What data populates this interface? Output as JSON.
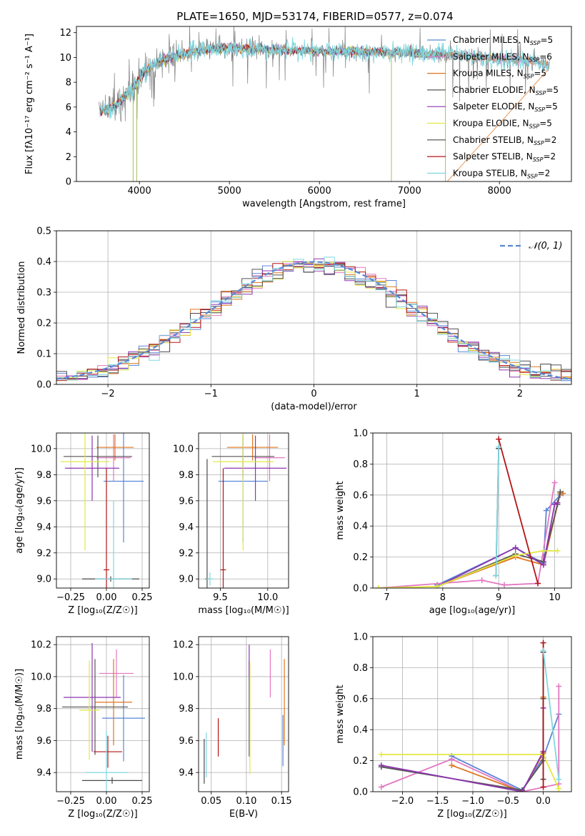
{
  "figure_title": "PLATE=1650, MJD=53174, FIBERID=0577, z=0.074",
  "series_colors": {
    "Chabrier MILES": "#5a87d8",
    "Salpeter MILES": "#e377c2",
    "Kroupa MILES": "#e0761f",
    "Chabrier ELODIE": "#555555",
    "Salpeter ELODIE": "#8f35b0",
    "Kroupa ELODIE": "#e3e840",
    "Chabrier STELIB": "#4a4a4a",
    "Salpeter STELIB": "#b51414",
    "Kroupa STELIB": "#7fd7e0",
    "spectrum_data": "#808080",
    "normal_curve": "#5a87d8",
    "grid": "#b0b0b0"
  },
  "chart_data": [
    {
      "id": "spectrum",
      "type": "line",
      "title": "PLATE=1650, MJD=53174, FIBERID=0577, z=0.074",
      "xlabel": "wavelength [Angstrom, rest frame]",
      "ylabel": "Flux [fλ10⁻¹⁷ erg cm⁻² s⁻¹ A⁻¹]",
      "xlim": [
        3300,
        8800
      ],
      "ylim": [
        0,
        12.5
      ],
      "xticks": [
        4000,
        5000,
        6000,
        7000,
        8000
      ],
      "yticks": [
        0,
        2,
        4,
        6,
        8,
        10,
        12
      ],
      "grid": false,
      "legend_position": "right",
      "legend": [
        {
          "label": "Chabrier MILES, N",
          "sub": "SSP",
          "suffix": "=5"
        },
        {
          "label": "Salpeter MILES, N",
          "sub": "SSP",
          "suffix": "=6"
        },
        {
          "label": "Kroupa MILES, N",
          "sub": "SSP",
          "suffix": "=5"
        },
        {
          "label": "Chabrier ELODIE, N",
          "sub": "SSP",
          "suffix": "=5"
        },
        {
          "label": "Salpeter ELODIE, N",
          "sub": "SSP",
          "suffix": "=5"
        },
        {
          "label": "Kroupa ELODIE, N",
          "sub": "SSP",
          "suffix": "=5"
        },
        {
          "label": "Chabrier STELIB, N",
          "sub": "SSP",
          "suffix": "=2"
        },
        {
          "label": "Salpeter STELIB, N",
          "sub": "SSP",
          "suffix": "=2"
        },
        {
          "label": "Kroupa STELIB, N",
          "sub": "SSP",
          "suffix": "=2"
        }
      ],
      "continuum": {
        "wavelength": [
          3550,
          3700,
          3800,
          3900,
          4000,
          4100,
          4200,
          4300,
          4400,
          4500,
          4700,
          5000,
          5300,
          5600,
          6000,
          6400,
          6800,
          7000,
          7300,
          7400,
          7500,
          8000,
          8400,
          8550
        ],
        "flux": [
          5.6,
          6.0,
          6.6,
          7.3,
          8.3,
          9.1,
          9.6,
          9.9,
          10.1,
          10.3,
          10.6,
          10.8,
          10.7,
          10.6,
          10.5,
          10.5,
          10.4,
          10.4,
          10.2,
          10.3,
          10.2,
          9.9,
          9.7,
          9.3
        ]
      },
      "features": [
        {
          "wavelength": 3930,
          "depth_to": 0
        },
        {
          "wavelength": 3970,
          "depth_to": 0
        },
        {
          "wavelength": 6800,
          "depth_to": 0
        },
        {
          "wavelength": 7400,
          "depth_to": 0
        }
      ]
    },
    {
      "id": "residuals",
      "type": "histogram",
      "xlabel": "(data-model)/error",
      "ylabel": "Normed distribution",
      "xlim": [
        -2.5,
        2.5
      ],
      "ylim": [
        0,
        0.5
      ],
      "xticks": [
        -2,
        -1,
        0,
        1,
        2
      ],
      "yticks": [
        0.0,
        0.1,
        0.2,
        0.3,
        0.4,
        0.5
      ],
      "grid": true,
      "legend_position": "top-right",
      "legend": [
        {
          "label": "𝒩(0, 1)",
          "style": "dashed"
        }
      ],
      "bin_edges_start": -2.5,
      "bin_width": 0.1
    },
    {
      "id": "age_vs_Z",
      "type": "errorbar",
      "xlabel": "Z [log₁₀(Z/Z☉)]",
      "ylabel": "age  [log₁₀(age/yr)]",
      "xlim": [
        -0.35,
        0.3
      ],
      "ylim": [
        8.93,
        10.12
      ],
      "xticks": [
        -0.25,
        0.0,
        0.25
      ],
      "yticks": [
        9.0,
        9.2,
        9.4,
        9.6,
        9.8,
        10.0
      ],
      "grid": true,
      "points": [
        {
          "series": "Chabrier MILES",
          "x": 0.12,
          "xerr": 0.14,
          "y": 9.75,
          "yerr": 0.47
        },
        {
          "series": "Salpeter MILES",
          "x": 0.05,
          "xerr": 0.12,
          "y": 9.93,
          "yerr": 0.18
        },
        {
          "series": "Kroupa MILES",
          "x": 0.06,
          "xerr": 0.13,
          "y": 10.01,
          "yerr": 0.1
        },
        {
          "series": "Chabrier ELODIE",
          "x": -0.06,
          "xerr": 0.24,
          "y": 9.94,
          "yerr": 0.16
        },
        {
          "series": "Salpeter ELODIE",
          "x": -0.1,
          "xerr": 0.19,
          "y": 9.85,
          "yerr": 0.25
        },
        {
          "series": "Kroupa ELODIE",
          "x": -0.15,
          "xerr": 0.17,
          "y": 9.9,
          "yerr": 0.68
        },
        {
          "series": "Chabrier STELIB",
          "x": 0.03,
          "xerr": 0.2,
          "y": 9.0,
          "yerr": 0.02
        },
        {
          "series": "Salpeter STELIB",
          "x": 0.0,
          "xerr": 0.02,
          "y": 9.07,
          "yerr": 0.78
        },
        {
          "series": "Kroupa STELIB",
          "x": 0.05,
          "xerr": 0.13,
          "y": 9.0,
          "yerr": 0.6
        }
      ]
    },
    {
      "id": "age_vs_mass",
      "type": "errorbar",
      "xlabel": "mass [log₁₀(M/M☉)]",
      "ylabel": "",
      "xlim": [
        9.27,
        10.22
      ],
      "ylim": [
        8.93,
        10.12
      ],
      "xticks": [
        9.5,
        10.0
      ],
      "yticks": [
        9.0,
        9.2,
        9.4,
        9.6,
        9.8,
        10.0
      ],
      "grid": true,
      "points": [
        {
          "series": "Chabrier MILES",
          "x": 9.74,
          "xerr": 0.26,
          "y": 9.75,
          "yerr": 0.47
        },
        {
          "series": "Salpeter MILES",
          "x": 10.02,
          "xerr": 0.16,
          "y": 9.93,
          "yerr": 0.18
        },
        {
          "series": "Kroupa MILES",
          "x": 9.84,
          "xerr": 0.27,
          "y": 10.01,
          "yerr": 0.1
        },
        {
          "series": "Chabrier ELODIE",
          "x": 9.74,
          "xerr": 0.33,
          "y": 9.94,
          "yerr": 0.16
        },
        {
          "series": "Salpeter ELODIE",
          "x": 9.87,
          "xerr": 0.33,
          "y": 9.85,
          "yerr": 0.25
        },
        {
          "series": "Kroupa ELODIE",
          "x": 9.74,
          "xerr": 0.32,
          "y": 9.9,
          "yerr": 0.68
        },
        {
          "series": "Chabrier STELIB",
          "x": 9.36,
          "xerr": 0.02,
          "y": 9.0,
          "yerr": 0.92
        },
        {
          "series": "Salpeter STELIB",
          "x": 9.53,
          "xerr": 0.03,
          "y": 9.07,
          "yerr": 0.78
        },
        {
          "series": "Kroupa STELIB",
          "x": 9.39,
          "xerr": 0.04,
          "y": 9.0,
          "yerr": 0.05
        }
      ]
    },
    {
      "id": "weights_vs_age",
      "type": "line",
      "xlabel": "age  [log₁₀(age/yr)]",
      "ylabel": "mass weight",
      "xlim": [
        6.75,
        10.3
      ],
      "ylim": [
        0,
        1.0
      ],
      "xticks": [
        7,
        8,
        9,
        10
      ],
      "yticks": [
        0.0,
        0.2,
        0.4,
        0.6,
        0.8,
        1.0
      ],
      "grid": true,
      "series": [
        {
          "name": "Chabrier MILES",
          "x": [
            7.9,
            9.3,
            9.8,
            9.85,
            10.1
          ],
          "y": [
            0.02,
            0.26,
            0.16,
            0.5,
            0.6
          ]
        },
        {
          "name": "Salpeter MILES",
          "x": [
            6.85,
            8.7,
            9.1,
            9.7,
            10.0
          ],
          "y": [
            0.0,
            0.05,
            0.02,
            0.03,
            0.68
          ]
        },
        {
          "name": "Kroupa MILES",
          "x": [
            7.9,
            9.3,
            9.8,
            10.1,
            10.15
          ],
          "y": [
            0.01,
            0.2,
            0.15,
            0.61,
            0.61
          ]
        },
        {
          "name": "Chabrier ELODIE",
          "x": [
            7.9,
            9.3,
            9.8,
            10.05,
            10.1
          ],
          "y": [
            0.01,
            0.22,
            0.17,
            0.54,
            0.62
          ]
        },
        {
          "name": "Salpeter ELODIE",
          "x": [
            7.9,
            9.3,
            9.8,
            10.0,
            10.05
          ],
          "y": [
            0.01,
            0.26,
            0.15,
            0.54,
            0.55
          ]
        },
        {
          "name": "Kroupa ELODIE",
          "x": [
            6.85,
            7.9,
            9.3,
            9.8,
            10.05
          ],
          "y": [
            0.0,
            0.01,
            0.21,
            0.24,
            0.24
          ]
        },
        {
          "name": "Chabrier STELIB",
          "x": [
            8.95,
            9.0
          ],
          "y": [
            0.08,
            0.9
          ]
        },
        {
          "name": "Salpeter STELIB",
          "x": [
            9.0,
            9.7
          ],
          "y": [
            0.96,
            0.03
          ]
        },
        {
          "name": "Kroupa STELIB",
          "x": [
            8.95,
            9.0
          ],
          "y": [
            0.08,
            0.91
          ]
        }
      ]
    },
    {
      "id": "mass_vs_Z",
      "type": "errorbar",
      "xlabel": "Z [log₁₀(Z/Z☉)]",
      "ylabel": "mass [log₁₀(M/M☉)]",
      "xlim": [
        -0.35,
        0.3
      ],
      "ylim": [
        9.28,
        10.25
      ],
      "xticks": [
        -0.25,
        0.0,
        0.25
      ],
      "yticks": [
        9.4,
        9.6,
        9.8,
        10.0,
        10.2
      ],
      "grid": true,
      "points": [
        {
          "series": "Chabrier MILES",
          "x": 0.12,
          "xerr": 0.15,
          "y": 9.74,
          "yerr": 0.27
        },
        {
          "series": "Salpeter MILES",
          "x": 0.07,
          "xerr": 0.12,
          "y": 10.02,
          "yerr": 0.15
        },
        {
          "series": "Kroupa MILES",
          "x": 0.05,
          "xerr": 0.13,
          "y": 9.84,
          "yerr": 0.27
        },
        {
          "series": "Chabrier ELODIE",
          "x": -0.08,
          "xerr": 0.23,
          "y": 9.81,
          "yerr": 0.3
        },
        {
          "series": "Salpeter ELODIE",
          "x": -0.1,
          "xerr": 0.2,
          "y": 9.87,
          "yerr": 0.34
        },
        {
          "series": "Kroupa ELODIE",
          "x": -0.12,
          "xerr": 0.07,
          "y": 9.79,
          "yerr": 0.31
        },
        {
          "series": "Chabrier STELIB",
          "x": 0.04,
          "xerr": 0.21,
          "y": 9.35,
          "yerr": 0.02
        },
        {
          "series": "Salpeter STELIB",
          "x": 0.01,
          "xerr": 0.1,
          "y": 9.53,
          "yerr": 0.1
        },
        {
          "series": "Kroupa STELIB",
          "x": 0.0,
          "xerr": 0.15,
          "y": 9.4,
          "yerr": 0.26
        }
      ]
    },
    {
      "id": "mass_vs_ebv",
      "type": "errorbar",
      "xlabel": "E(B-V)",
      "ylabel": "",
      "xlim": [
        0.032,
        0.16
      ],
      "ylim": [
        9.28,
        10.25
      ],
      "xticks": [
        0.05,
        0.1,
        0.15
      ],
      "yticks": [
        9.4,
        9.6,
        9.8,
        10.0,
        10.2
      ],
      "grid": true,
      "points": [
        {
          "series": "Chabrier MILES",
          "x": 0.152,
          "y": 9.6,
          "yerr": 0.16
        },
        {
          "series": "Salpeter MILES",
          "x": 0.134,
          "y": 10.02,
          "yerr": 0.15
        },
        {
          "series": "Kroupa MILES",
          "x": 0.154,
          "y": 9.84,
          "yerr": 0.27
        },
        {
          "series": "Chabrier ELODIE",
          "x": 0.104,
          "y": 9.8,
          "yerr": 0.3
        },
        {
          "series": "Salpeter ELODIE",
          "x": 0.104,
          "y": 10.1,
          "yerr": 0.1
        },
        {
          "series": "Kroupa ELODIE",
          "x": 0.105,
          "y": 9.74,
          "yerr": 0.35
        },
        {
          "series": "Chabrier STELIB",
          "x": 0.04,
          "y": 9.47,
          "yerr": 0.14
        },
        {
          "series": "Salpeter STELIB",
          "x": 0.06,
          "y": 9.62,
          "yerr": 0.12
        },
        {
          "series": "Kroupa STELIB",
          "x": 0.043,
          "y": 9.51,
          "yerr": 0.14
        }
      ]
    },
    {
      "id": "weights_vs_Z",
      "type": "line",
      "xlabel": "Z [log₁₀(Z/Z☉)]",
      "ylabel": "mass weight",
      "xlim": [
        -2.42,
        0.4
      ],
      "ylim": [
        0,
        1.0
      ],
      "xticks": [
        -2.0,
        -1.5,
        -1.0,
        -0.5,
        0.0
      ],
      "yticks": [
        0.0,
        0.2,
        0.4,
        0.6,
        0.8,
        1.0
      ],
      "grid": true,
      "series": [
        {
          "name": "Chabrier MILES",
          "x": [
            -1.3,
            -0.3,
            0.0,
            0.22
          ],
          "y": [
            0.23,
            0.01,
            0.22,
            0.5
          ]
        },
        {
          "name": "Salpeter MILES",
          "x": [
            -2.3,
            -1.3,
            -0.3,
            0.22,
            0.22
          ],
          "y": [
            0.03,
            0.21,
            0.0,
            0.05,
            0.68
          ]
        },
        {
          "name": "Kroupa MILES",
          "x": [
            -1.3,
            -0.3,
            0.0,
            0.0
          ],
          "y": [
            0.17,
            0.0,
            0.25,
            0.61
          ]
        },
        {
          "name": "Chabrier ELODIE",
          "x": [
            -2.3,
            -0.3,
            0.0,
            0.0
          ],
          "y": [
            0.16,
            0.01,
            0.2,
            0.6
          ]
        },
        {
          "name": "Salpeter ELODIE",
          "x": [
            -2.3,
            -0.3,
            0.0,
            0.0
          ],
          "y": [
            0.17,
            0.0,
            0.26,
            0.54
          ]
        },
        {
          "name": "Kroupa ELODIE",
          "x": [
            -2.3,
            0.0,
            0.22
          ],
          "y": [
            0.24,
            0.24,
            0.02
          ]
        },
        {
          "name": "Chabrier STELIB",
          "x": [
            0.0,
            0.0
          ],
          "y": [
            0.08,
            0.9
          ]
        },
        {
          "name": "Salpeter STELIB",
          "x": [
            0.0,
            0.0
          ],
          "y": [
            0.03,
            0.96
          ]
        },
        {
          "name": "Kroupa STELIB",
          "x": [
            0.0,
            0.22
          ],
          "y": [
            0.91,
            0.08
          ]
        }
      ]
    }
  ]
}
